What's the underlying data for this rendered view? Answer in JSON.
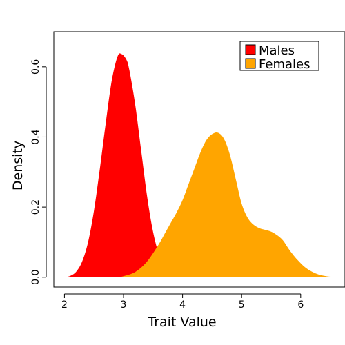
{
  "chart_data": {
    "type": "area",
    "title": "",
    "xlabel": "Trait Value",
    "ylabel": "Density",
    "xlim": [
      1.82,
      6.75
    ],
    "ylim": [
      -0.028,
      0.7
    ],
    "x_ticks": [
      2,
      3,
      4,
      5,
      6
    ],
    "x_tick_labels": [
      "2",
      "3",
      "4",
      "5",
      "6"
    ],
    "y_ticks": [
      0.0,
      0.2,
      0.4,
      0.6
    ],
    "y_tick_labels": [
      "0.0",
      "0.2",
      "0.4",
      "0.6"
    ],
    "grid": false,
    "legend_position": "top-right",
    "series": [
      {
        "name": "Males",
        "color": "#ff0000",
        "x": [
          2.0,
          2.1,
          2.2,
          2.3,
          2.4,
          2.5,
          2.6,
          2.7,
          2.8,
          2.9,
          2.97,
          3.05,
          3.1,
          3.2,
          3.3,
          3.4,
          3.5,
          3.6,
          3.7,
          3.8,
          3.9,
          4.0
        ],
        "y": [
          0.0,
          0.004,
          0.016,
          0.045,
          0.1,
          0.19,
          0.31,
          0.44,
          0.56,
          0.63,
          0.636,
          0.62,
          0.59,
          0.49,
          0.36,
          0.23,
          0.13,
          0.065,
          0.028,
          0.01,
          0.003,
          0.0
        ]
      },
      {
        "name": "Females",
        "color": "#ffa500",
        "x": [
          2.9,
          3.0,
          3.2,
          3.4,
          3.6,
          3.7,
          3.8,
          3.9,
          4.0,
          4.1,
          4.2,
          4.3,
          4.4,
          4.5,
          4.6,
          4.7,
          4.8,
          4.9,
          5.0,
          5.1,
          5.2,
          5.3,
          5.4,
          5.5,
          5.6,
          5.7,
          5.8,
          5.9,
          6.0,
          6.1,
          6.2,
          6.3,
          6.4,
          6.5,
          6.65,
          6.75
        ],
        "y": [
          0.0,
          0.003,
          0.015,
          0.045,
          0.095,
          0.125,
          0.155,
          0.185,
          0.22,
          0.265,
          0.31,
          0.355,
          0.39,
          0.408,
          0.412,
          0.395,
          0.35,
          0.28,
          0.21,
          0.17,
          0.15,
          0.14,
          0.135,
          0.13,
          0.12,
          0.105,
          0.08,
          0.058,
          0.04,
          0.025,
          0.015,
          0.008,
          0.004,
          0.0015,
          0.0,
          0.0
        ]
      }
    ]
  }
}
